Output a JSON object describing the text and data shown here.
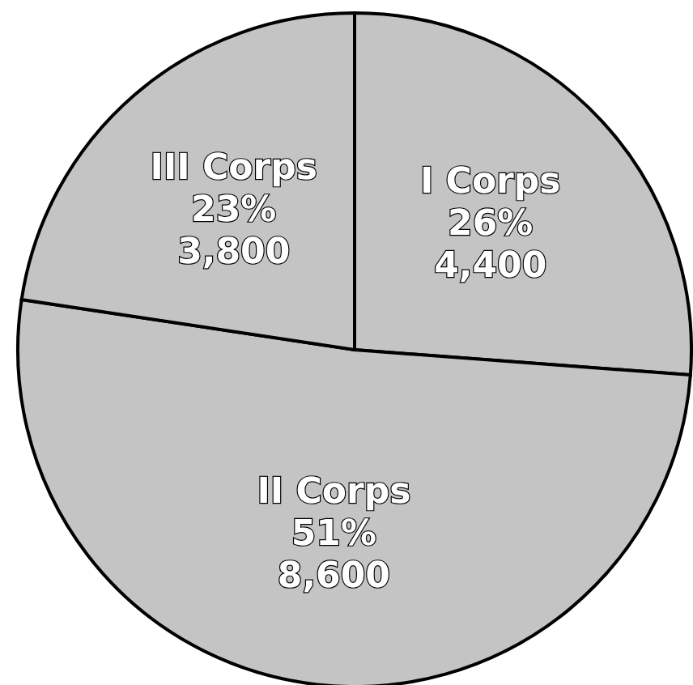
{
  "chart_data": {
    "type": "pie",
    "categories": [
      "I Corps",
      "II Corps",
      "III Corps"
    ],
    "values": [
      4400,
      8600,
      3800
    ],
    "colors": [
      "#c4c4c4",
      "#c4c4c4",
      "#c4c4c4"
    ],
    "value_labels": [
      "26%\n4,400",
      "51%\n8,600",
      "23%\n3,800"
    ],
    "legend": false
  }
}
